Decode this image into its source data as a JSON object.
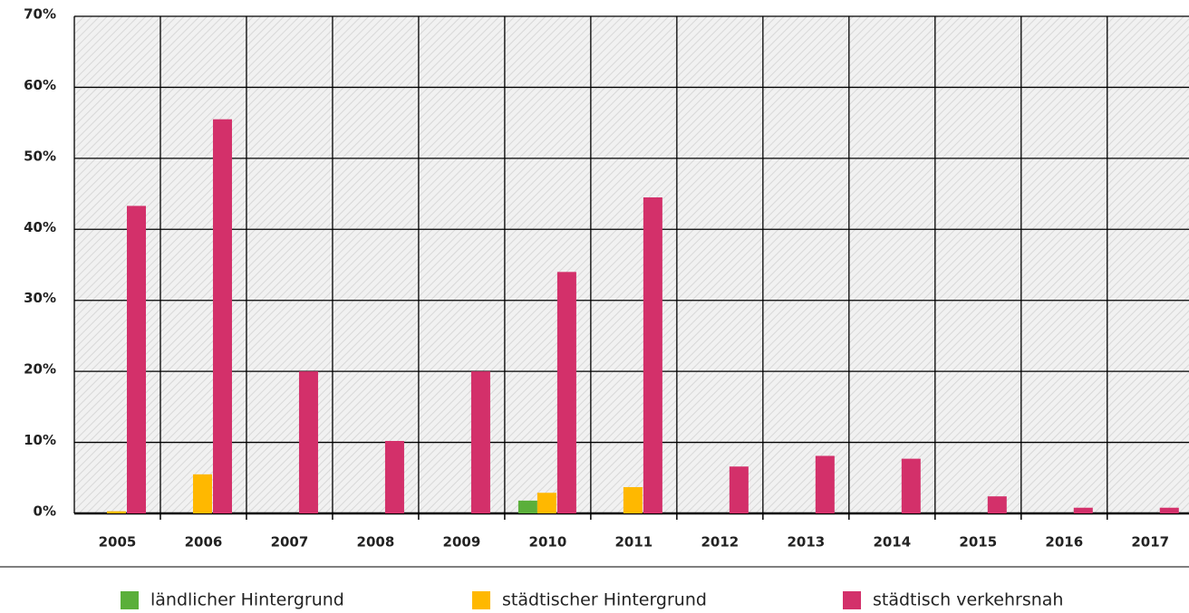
{
  "chart_data": {
    "type": "bar",
    "categories": [
      "2005",
      "2006",
      "2007",
      "2008",
      "2009",
      "2010",
      "2011",
      "2012",
      "2013",
      "2014",
      "2015",
      "2016",
      "2017"
    ],
    "series": [
      {
        "name": "ländlicher Hintergrund",
        "color": "#5aaf3a",
        "values": [
          0,
          0,
          0,
          0,
          0,
          1.8,
          0,
          0,
          0,
          0,
          0,
          0,
          0
        ]
      },
      {
        "name": "städtischer Hintergrund",
        "color": "#ffb800",
        "values": [
          0.3,
          5.5,
          0,
          0,
          0,
          2.9,
          3.7,
          0,
          0,
          0,
          0,
          0,
          0
        ]
      },
      {
        "name": "städtisch verkehrsnah",
        "color": "#d3306a",
        "values": [
          43.3,
          55.5,
          20,
          10.2,
          20,
          34,
          44.5,
          6.6,
          8.1,
          7.7,
          2.4,
          0.8,
          0.8
        ]
      }
    ],
    "ylim": [
      0,
      70
    ],
    "yticks": [
      {
        "value": 0,
        "label": "0%"
      },
      {
        "value": 10,
        "label": "10%"
      },
      {
        "value": 20,
        "label": "20%"
      },
      {
        "value": 30,
        "label": "30%"
      },
      {
        "value": 40,
        "label": "40%"
      },
      {
        "value": 50,
        "label": "50%"
      },
      {
        "value": 60,
        "label": "60%"
      },
      {
        "value": 70,
        "label": "70%"
      }
    ],
    "grid": true,
    "legend": "bottom"
  }
}
